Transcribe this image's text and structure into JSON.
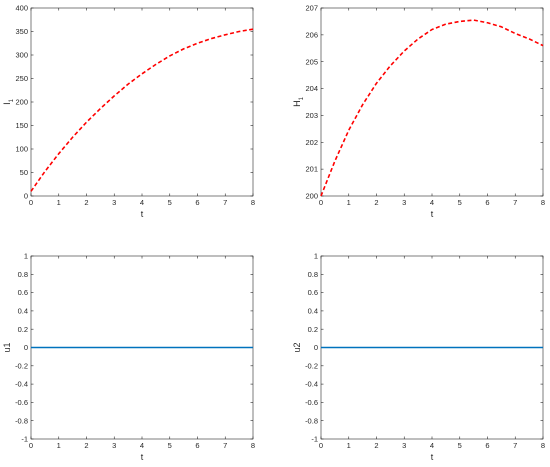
{
  "chart_data": [
    {
      "type": "line",
      "xlabel": "t",
      "ylabel": "I",
      "ylabel_subscript": "1",
      "xlim": [
        0,
        8
      ],
      "ylim": [
        0,
        400
      ],
      "xticks": [
        0,
        1,
        2,
        3,
        4,
        5,
        6,
        7,
        8
      ],
      "yticks": [
        0,
        50,
        100,
        150,
        200,
        250,
        300,
        350,
        400
      ],
      "grid": false,
      "legend": "none",
      "series": [
        {
          "color": "#ff0000",
          "style": "dashed",
          "x": [
            0,
            0.5,
            1,
            1.5,
            2,
            2.5,
            3,
            3.5,
            4,
            4.5,
            5,
            5.5,
            6,
            6.5,
            7,
            7.5,
            8
          ],
          "y": [
            10,
            52,
            90,
            125,
            157,
            186,
            213,
            238,
            260,
            280,
            298,
            313,
            325,
            335,
            343,
            350,
            355
          ]
        }
      ]
    },
    {
      "type": "line",
      "xlabel": "t",
      "ylabel": "H",
      "ylabel_subscript": "1",
      "xlim": [
        0,
        8
      ],
      "ylim": [
        200,
        207
      ],
      "xticks": [
        0,
        1,
        2,
        3,
        4,
        5,
        6,
        7,
        8
      ],
      "yticks": [
        200,
        201,
        202,
        203,
        204,
        205,
        206,
        207
      ],
      "grid": false,
      "legend": "none",
      "series": [
        {
          "color": "#ff0000",
          "style": "dashed",
          "x": [
            0,
            0.5,
            1,
            1.5,
            2,
            2.5,
            3,
            3.5,
            4,
            4.5,
            5,
            5.5,
            6,
            6.5,
            7,
            7.5,
            8
          ],
          "y": [
            200.0,
            201.3,
            202.45,
            203.4,
            204.2,
            204.85,
            205.4,
            205.85,
            206.2,
            206.4,
            206.5,
            206.55,
            206.45,
            206.3,
            206.05,
            205.85,
            205.6
          ]
        }
      ]
    },
    {
      "type": "line",
      "xlabel": "t",
      "ylabel": "u1",
      "ylabel_subscript": "",
      "xlim": [
        0,
        8
      ],
      "ylim": [
        -1,
        1
      ],
      "xticks": [
        0,
        1,
        2,
        3,
        4,
        5,
        6,
        7,
        8
      ],
      "yticks": [
        -1,
        -0.8,
        -0.6,
        -0.4,
        -0.2,
        0,
        0.2,
        0.4,
        0.6,
        0.8,
        1
      ],
      "grid": false,
      "legend": "none",
      "series": [
        {
          "color": "#0072bd",
          "style": "solid",
          "x": [
            0,
            8
          ],
          "y": [
            0,
            0
          ]
        }
      ]
    },
    {
      "type": "line",
      "xlabel": "t",
      "ylabel": "u2",
      "ylabel_subscript": "",
      "xlim": [
        0,
        8
      ],
      "ylim": [
        -1,
        1
      ],
      "xticks": [
        0,
        1,
        2,
        3,
        4,
        5,
        6,
        7,
        8
      ],
      "yticks": [
        -1,
        -0.8,
        -0.6,
        -0.4,
        -0.2,
        0,
        0.2,
        0.4,
        0.6,
        0.8,
        1
      ],
      "grid": false,
      "legend": "none",
      "series": [
        {
          "color": "#0072bd",
          "style": "solid",
          "x": [
            0,
            8
          ],
          "y": [
            0,
            0
          ]
        }
      ]
    }
  ]
}
